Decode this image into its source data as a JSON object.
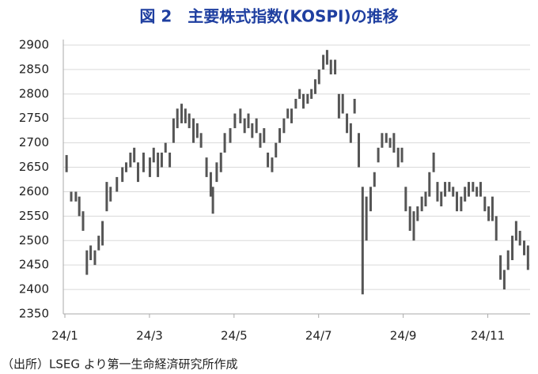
{
  "chart_data": {
    "type": "range",
    "title": "図 2　主要株式指数(KOSPI)の推移",
    "source": "（出所）LSEG より第一生命経済研究所作成",
    "color": "#555555",
    "grid": true,
    "xlim": [
      0,
      11
    ],
    "xticks": [
      {
        "value": 0,
        "label": "24/1"
      },
      {
        "value": 2,
        "label": "24/3"
      },
      {
        "value": 4,
        "label": "24/5"
      },
      {
        "value": 6,
        "label": "24/7"
      },
      {
        "value": 8,
        "label": "24/9"
      },
      {
        "value": 10,
        "label": "24/11"
      }
    ],
    "ylim": [
      2350,
      2900
    ],
    "yticks": [
      2350,
      2400,
      2450,
      2500,
      2550,
      2600,
      2650,
      2700,
      2750,
      2800,
      2850,
      2900
    ],
    "x": [
      0.04,
      0.15,
      0.26,
      0.34,
      0.43,
      0.52,
      0.61,
      0.71,
      0.8,
      0.89,
      0.99,
      1.08,
      1.23,
      1.36,
      1.45,
      1.55,
      1.64,
      1.73,
      1.86,
      2.01,
      2.1,
      2.2,
      2.29,
      2.38,
      2.48,
      2.57,
      2.66,
      2.76,
      2.85,
      2.94,
      3.04,
      3.13,
      3.22,
      3.35,
      3.45,
      3.5,
      3.59,
      3.69,
      3.78,
      3.91,
      4.02,
      4.15,
      4.25,
      4.34,
      4.43,
      4.53,
      4.62,
      4.71,
      4.8,
      4.9,
      4.99,
      5.08,
      5.18,
      5.27,
      5.36,
      5.46,
      5.55,
      5.64,
      5.74,
      5.83,
      5.92,
      6.01,
      6.11,
      6.2,
      6.29,
      6.39,
      6.48,
      6.57,
      6.67,
      6.76,
      6.85,
      6.95,
      7.04,
      7.13,
      7.23,
      7.32,
      7.41,
      7.5,
      7.6,
      7.69,
      7.78,
      7.88,
      7.97,
      8.06,
      8.16,
      8.25,
      8.34,
      8.44,
      8.53,
      8.62,
      8.72,
      8.81,
      8.9,
      8.99,
      9.09,
      9.18,
      9.27,
      9.37,
      9.46,
      9.55,
      9.65,
      9.74,
      9.83,
      9.93,
      10.02,
      10.11,
      10.2,
      10.3,
      10.39,
      10.48,
      10.58,
      10.67,
      10.76,
      10.86,
      10.95
    ],
    "low": [
      2640,
      2580,
      2580,
      2550,
      2520,
      2430,
      2460,
      2450,
      2480,
      2490,
      2560,
      2580,
      2600,
      2620,
      2640,
      2650,
      2660,
      2620,
      2640,
      2630,
      2660,
      2630,
      2650,
      2680,
      2650,
      2700,
      2730,
      2740,
      2740,
      2730,
      2700,
      2710,
      2690,
      2630,
      2590,
      2555,
      2620,
      2640,
      2680,
      2700,
      2730,
      2740,
      2720,
      2730,
      2710,
      2720,
      2690,
      2700,
      2650,
      2640,
      2670,
      2700,
      2720,
      2750,
      2740,
      2770,
      2790,
      2770,
      2780,
      2790,
      2800,
      2820,
      2850,
      2860,
      2840,
      2840,
      2750,
      2760,
      2720,
      2700,
      2760,
      2650,
      2390,
      2500,
      2560,
      2610,
      2660,
      2690,
      2700,
      2690,
      2680,
      2650,
      2660,
      2560,
      2520,
      2500,
      2540,
      2560,
      2570,
      2590,
      2640,
      2580,
      2570,
      2590,
      2600,
      2590,
      2560,
      2560,
      2580,
      2590,
      2600,
      2590,
      2590,
      2560,
      2540,
      2540,
      2500,
      2420,
      2400,
      2440,
      2460,
      2500,
      2490,
      2470,
      2440
    ],
    "high": [
      2675,
      2600,
      2600,
      2590,
      2560,
      2480,
      2490,
      2480,
      2510,
      2540,
      2620,
      2610,
      2630,
      2650,
      2660,
      2680,
      2690,
      2660,
      2680,
      2670,
      2690,
      2680,
      2680,
      2700,
      2680,
      2750,
      2770,
      2780,
      2770,
      2760,
      2750,
      2740,
      2720,
      2670,
      2640,
      2610,
      2660,
      2680,
      2720,
      2730,
      2760,
      2770,
      2750,
      2760,
      2740,
      2750,
      2720,
      2730,
      2680,
      2670,
      2700,
      2730,
      2750,
      2770,
      2770,
      2790,
      2810,
      2800,
      2800,
      2810,
      2830,
      2850,
      2880,
      2890,
      2870,
      2870,
      2800,
      2800,
      2760,
      2740,
      2790,
      2720,
      2610,
      2590,
      2610,
      2640,
      2690,
      2720,
      2720,
      2710,
      2720,
      2690,
      2690,
      2610,
      2570,
      2560,
      2570,
      2590,
      2600,
      2640,
      2680,
      2620,
      2600,
      2620,
      2620,
      2610,
      2600,
      2590,
      2610,
      2620,
      2620,
      2610,
      2620,
      2590,
      2570,
      2590,
      2550,
      2470,
      2440,
      2480,
      2510,
      2540,
      2520,
      2500,
      2490
    ]
  }
}
